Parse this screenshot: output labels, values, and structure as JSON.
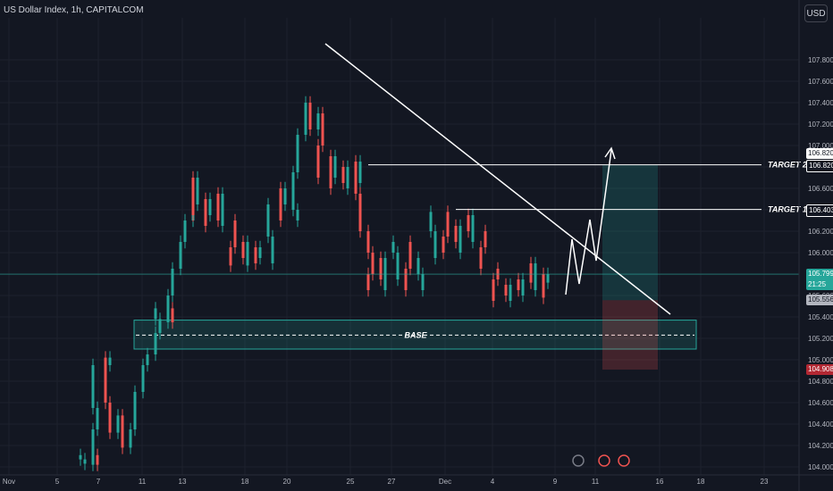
{
  "header": {
    "title": "US Dollar Index, 1h, CAPITALCOM"
  },
  "currency_button": {
    "label": "USD"
  },
  "colors": {
    "background": "#131722",
    "up": "#26a69a",
    "down": "#ef5350",
    "axis_text": "#b2b5be",
    "grid": "#1e222d",
    "base_zone": "#26a69a",
    "trend_line": "#ffffff"
  },
  "chart_data": {
    "type": "candlestick",
    "symbol": "US Dollar Index",
    "timeframe": "1h",
    "source": "CAPITALCOM",
    "ylim": [
      103.94,
      107.86
    ],
    "y_ticks": [
      "107.800",
      "107.600",
      "107.400",
      "107.200",
      "107.000",
      "106.800",
      "106.600",
      "106.400",
      "106.200",
      "106.000",
      "105.800",
      "105.600",
      "105.400",
      "105.200",
      "105.000",
      "104.800",
      "104.600",
      "104.400",
      "104.200",
      "104.000"
    ],
    "x_ticks": [
      "Nov",
      "5",
      "7",
      "11",
      "13",
      "18",
      "20",
      "25",
      "27",
      "Dec",
      "4",
      "9",
      "11",
      "16",
      "18",
      "23"
    ],
    "price_path": [
      [
        5,
        104.03
      ],
      [
        5,
        104.07
      ],
      [
        5,
        104.11
      ],
      [
        6,
        104.02
      ],
      [
        6,
        104.35
      ],
      [
        6,
        104.55
      ],
      [
        6,
        104.95
      ],
      [
        7,
        105.02
      ],
      [
        7,
        104.6
      ],
      [
        7,
        104.32
      ],
      [
        8,
        104.48
      ],
      [
        8,
        104.18
      ],
      [
        9,
        104.35
      ],
      [
        9,
        104.7
      ],
      [
        10,
        104.95
      ],
      [
        10,
        105.05
      ],
      [
        11,
        105.25
      ],
      [
        11,
        105.38
      ],
      [
        11,
        105.48
      ],
      [
        12,
        105.35
      ],
      [
        12,
        105.6
      ],
      [
        12,
        105.85
      ],
      [
        13,
        106.1
      ],
      [
        13,
        106.3
      ],
      [
        14,
        106.45
      ],
      [
        14,
        106.7
      ],
      [
        14,
        106.35
      ],
      [
        15,
        106.5
      ],
      [
        15,
        106.25
      ],
      [
        16,
        106.55
      ],
      [
        16,
        106.3
      ],
      [
        17,
        106.05
      ],
      [
        17,
        105.88
      ],
      [
        18,
        106.1
      ],
      [
        18,
        105.95
      ],
      [
        19,
        106.05
      ],
      [
        19,
        105.9
      ],
      [
        20,
        106.15
      ],
      [
        20,
        106.45
      ],
      [
        21,
        106.6
      ],
      [
        21,
        106.3
      ],
      [
        22,
        106.4
      ],
      [
        22,
        106.75
      ],
      [
        22,
        107.1
      ],
      [
        23,
        107.4
      ],
      [
        23,
        107.15
      ],
      [
        24,
        107.3
      ],
      [
        24,
        107.0
      ],
      [
        24,
        106.7
      ],
      [
        25,
        106.9
      ],
      [
        25,
        106.6
      ],
      [
        26,
        106.8
      ],
      [
        26,
        106.65
      ],
      [
        27,
        106.85
      ],
      [
        27,
        106.55
      ],
      [
        27,
        106.2
      ],
      [
        28,
        106.0
      ],
      [
        28,
        105.8
      ],
      [
        28,
        105.65
      ],
      [
        29,
        105.95
      ],
      [
        29,
        105.75
      ],
      [
        30,
        106.0
      ],
      [
        30,
        106.1
      ],
      [
        31,
        105.85
      ],
      [
        31,
        105.65
      ],
      [
        32,
        105.8
      ],
      [
        32,
        105.95
      ],
      [
        33,
        106.2
      ],
      [
        33,
        106.38
      ],
      [
        34,
        106.15
      ],
      [
        34,
        106.0
      ],
      [
        35,
        106.25
      ],
      [
        35,
        106.1
      ],
      [
        36,
        106.35
      ],
      [
        36,
        106.2
      ],
      [
        37,
        106.05
      ],
      [
        37,
        105.85
      ],
      [
        38,
        105.75
      ],
      [
        38,
        105.55
      ],
      [
        39,
        105.7
      ],
      [
        39,
        105.6
      ],
      [
        40,
        105.75
      ],
      [
        40,
        105.65
      ],
      [
        41,
        105.9
      ],
      [
        41,
        105.72
      ],
      [
        42,
        105.8
      ],
      [
        42,
        105.58
      ]
    ],
    "annotations": {
      "base_label": "BASE",
      "base_zone": [
        105.1,
        105.37
      ],
      "base_line": 105.23,
      "target1_label": "TARGET 1",
      "target1_price": "106.403",
      "target2_label": "TARGET 2",
      "target2_price": "106.820",
      "current_price": "105.799",
      "countdown": "21:25",
      "level_price": "105.556",
      "stop_price": "104.908"
    }
  }
}
